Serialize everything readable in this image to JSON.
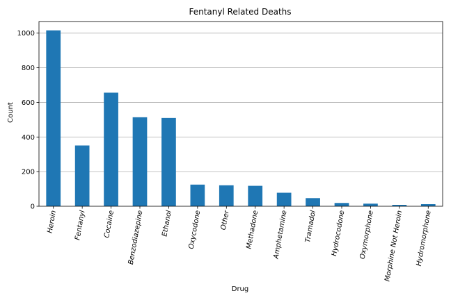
{
  "chart_data": {
    "type": "bar",
    "title": "Fentanyl Related Deaths",
    "xlabel": "Drug",
    "ylabel": "Count",
    "categories": [
      "Heroin",
      "Fentanyl",
      "Cocaine",
      "Benzodiazepine",
      "Ethanol",
      "Oxycodone",
      "Other",
      "Methadone",
      "Amphetamine",
      "Tramadol",
      "Hydrocodone",
      "Oxymorphone",
      "Morphine Not Heroin",
      "Hydromorphone"
    ],
    "values": [
      1016,
      351,
      656,
      514,
      510,
      125,
      121,
      118,
      78,
      47,
      19,
      15,
      8,
      12
    ],
    "ylim": [
      0,
      1067
    ],
    "yticks": [
      0,
      200,
      400,
      600,
      800,
      1000
    ],
    "grid": "y",
    "color": "#1f77b4"
  }
}
